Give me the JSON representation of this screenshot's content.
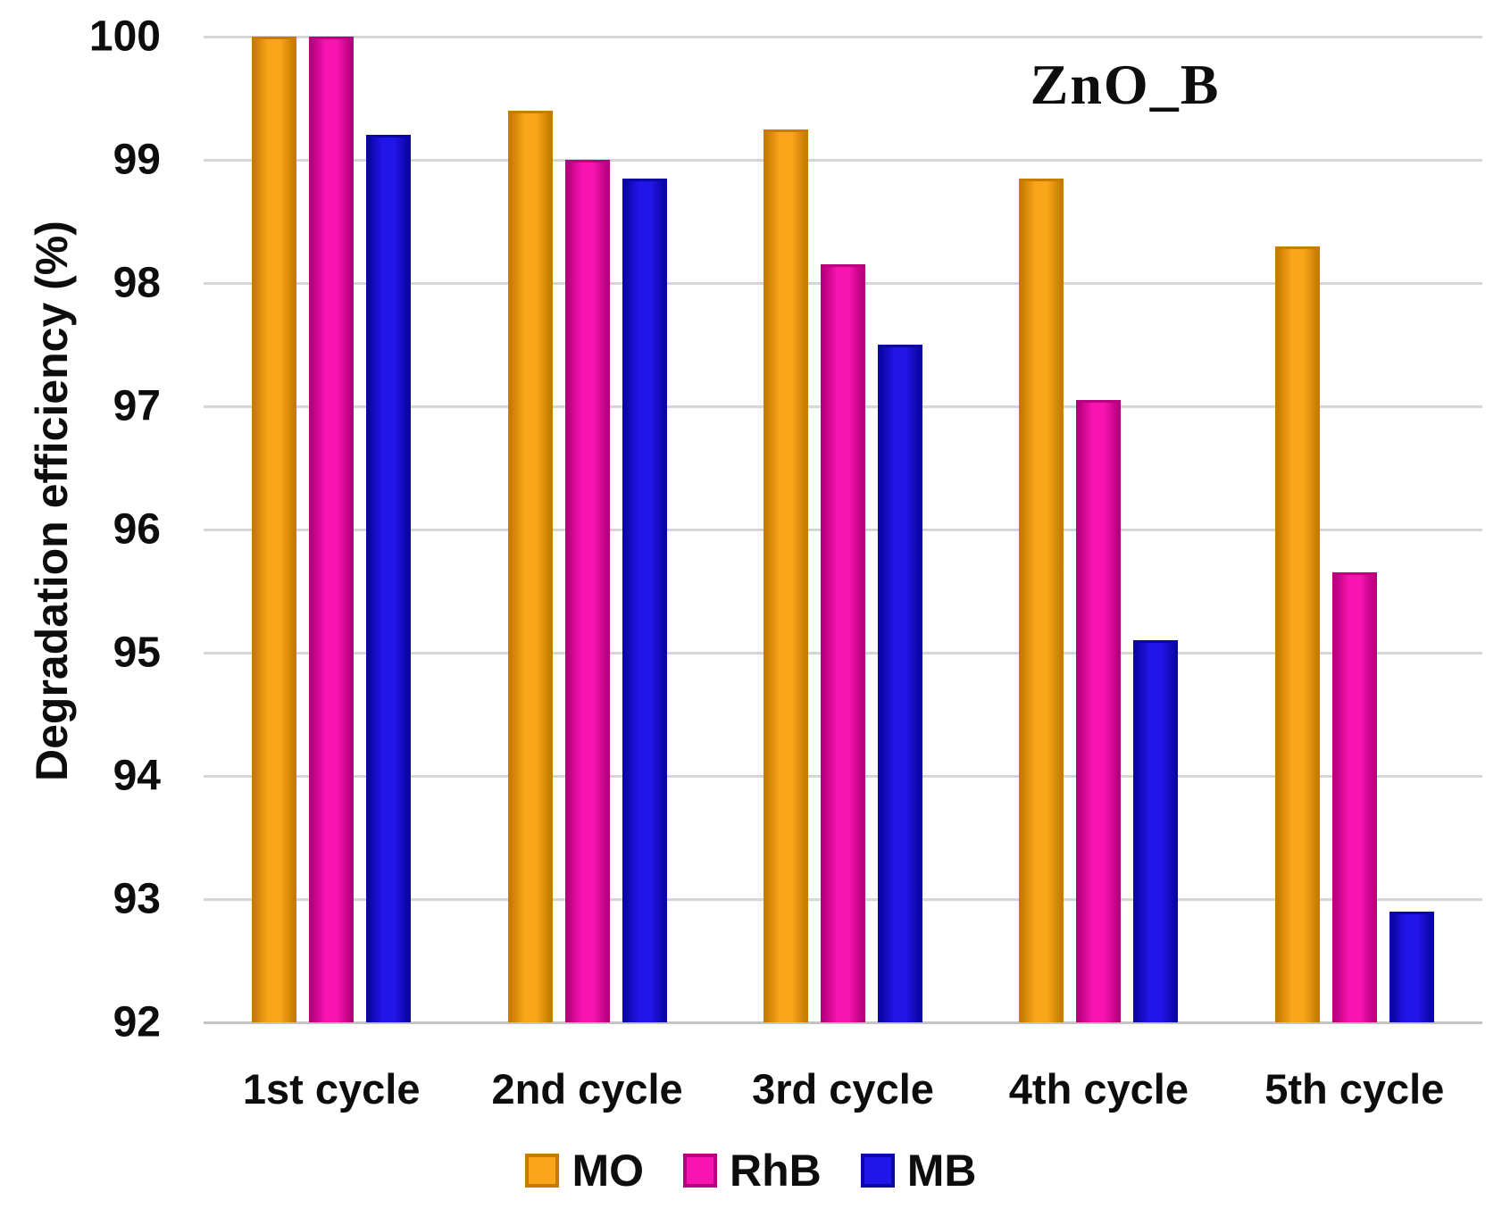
{
  "chart_data": {
    "type": "bar",
    "title": "ZnO_B",
    "ylabel": "Degradation efficiency (%)",
    "xlabel": "",
    "categories": [
      "1st cycle",
      "2nd cycle",
      "3rd cycle",
      "4th cycle",
      "5th cycle"
    ],
    "series": [
      {
        "name": "MO",
        "color": "#FAA61B",
        "edge_color": "#C77C00",
        "values": [
          100,
          99.4,
          99.25,
          98.85,
          98.3
        ]
      },
      {
        "name": "RhB",
        "color": "#F714B0",
        "edge_color": "#B8007E",
        "values": [
          100,
          99.0,
          98.15,
          97.05,
          95.65
        ]
      },
      {
        "name": "MB",
        "color": "#2215E8",
        "edge_color": "#0B06A6",
        "values": [
          99.2,
          98.85,
          97.5,
          95.1,
          92.9
        ]
      }
    ],
    "ylim": [
      92,
      100
    ],
    "yticks": [
      100,
      99,
      98,
      97,
      96,
      95,
      94,
      93,
      92
    ],
    "grid": true,
    "gridline_color": "#d6d6d6",
    "legend_position": "bottom",
    "background_color": "#ffffff",
    "text_color": "#0d0d0d"
  }
}
